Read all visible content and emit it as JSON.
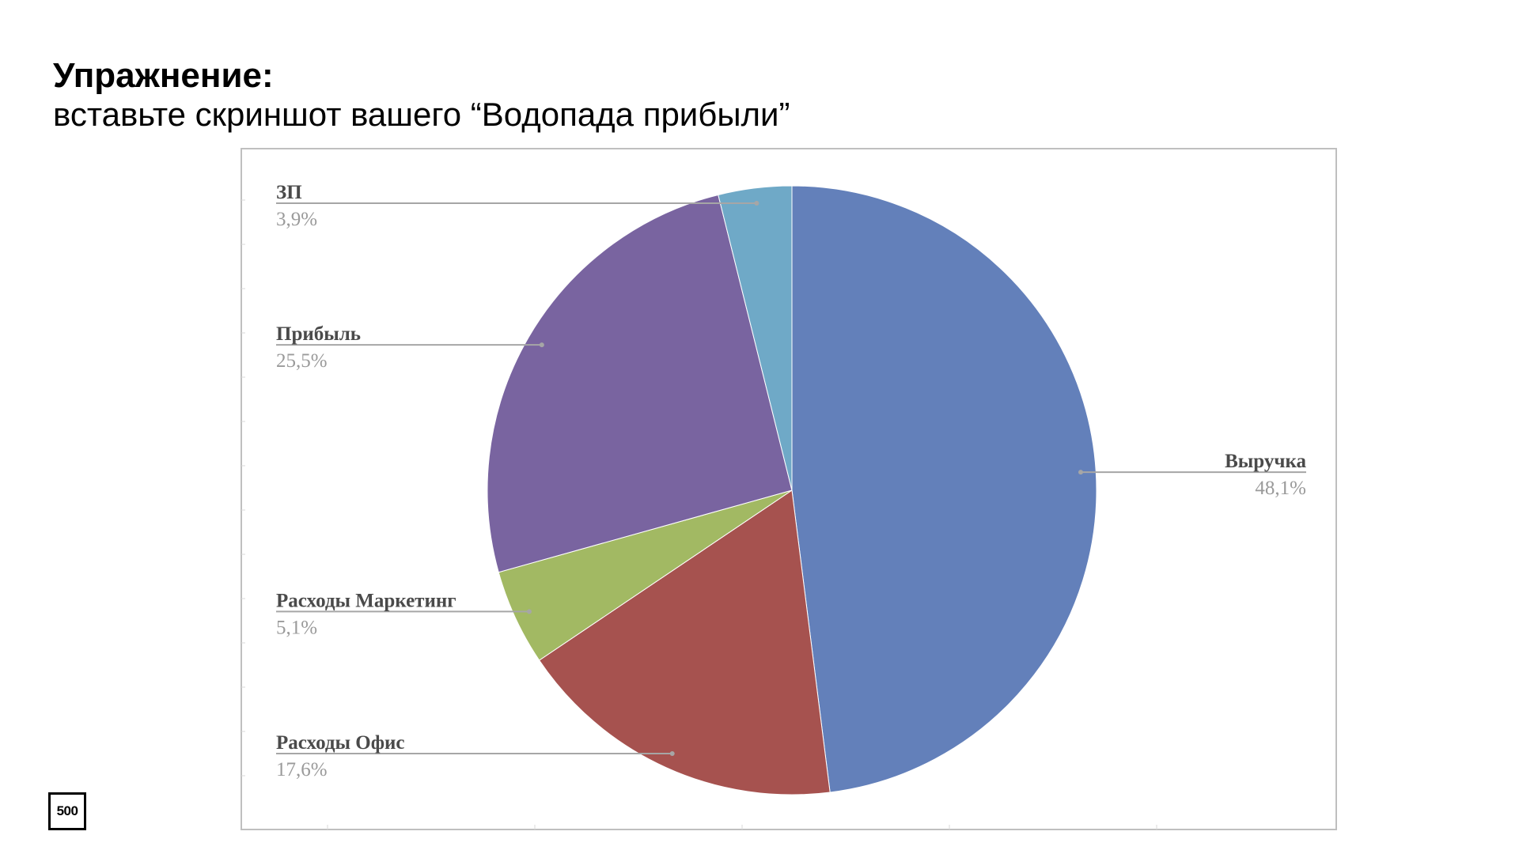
{
  "slide": {
    "title": "Упражнение:",
    "subtitle": "вставьте скриншот вашего “Водопада прибыли”",
    "logo_text": "500"
  },
  "colors": {
    "Выручка": "#6380BA",
    "Расходы Офис": "#A6524F",
    "Расходы Маркетинг": "#A2B963",
    "Прибыль": "#7964A0",
    "ЗП": "#6FA9C7",
    "frame": "#BFBFBF",
    "leader": "#A6A6A6"
  },
  "chart_data": {
    "type": "pie",
    "start_angle": "top",
    "direction": "clockwise",
    "legend": "none",
    "data_labels": "name and percent, left/right of pie with leader lines",
    "slices": [
      {
        "label": "Выручка",
        "value": 48.1,
        "display": "48,1%"
      },
      {
        "label": "Расходы Офис",
        "value": 17.6,
        "display": "17,6%"
      },
      {
        "label": "Расходы Маркетинг",
        "value": 5.1,
        "display": "5,1%"
      },
      {
        "label": "Прибыль",
        "value": 25.5,
        "display": "25,5%"
      },
      {
        "label": "ЗП",
        "value": 3.9,
        "display": "3,9%"
      }
    ]
  }
}
